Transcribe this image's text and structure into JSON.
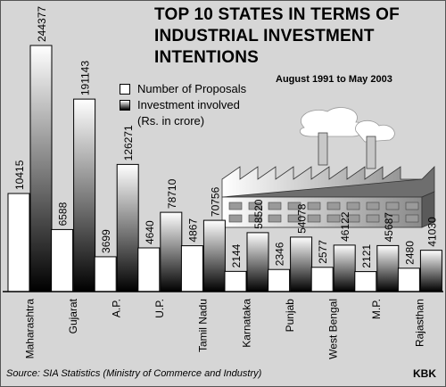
{
  "chart_data": {
    "type": "bar",
    "title": "TOP 10 STATES IN TERMS OF INDUSTRIAL INVESTMENT INTENTIONS",
    "subtitle": "August 1991 to May 2003",
    "categories": [
      "Maharashtra",
      "Gujarat",
      "A.P.",
      "U.P.",
      "Tamil Nadu",
      "Karnataka",
      "Punjab",
      "West Bengal",
      "M.P.",
      "Rajasthan"
    ],
    "series": [
      {
        "name": "Number of Proposals",
        "values": [
          10415,
          6588,
          3699,
          4640,
          4867,
          2144,
          2346,
          2577,
          2121,
          2480
        ]
      },
      {
        "name": "Investment involved",
        "values": [
          244377,
          191143,
          126271,
          78710,
          70756,
          58520,
          54078,
          46122,
          45687,
          41030
        ]
      }
    ],
    "legend_note": "(Rs. in crore)",
    "legend_position": "top-center",
    "grid": false,
    "colors": {
      "proposals": "#ffffff",
      "investment_top": "#ffffff",
      "investment_bottom": "#000000",
      "background": "#d6d6d6"
    }
  },
  "footer": {
    "source": "Source: SIA Statistics (Ministry of Commerce and Industry)",
    "credit": "KBK"
  }
}
